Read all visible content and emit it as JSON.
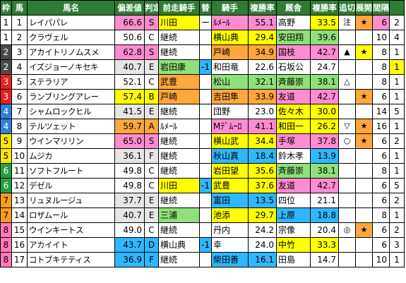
{
  "headers": [
    "枠",
    "馬",
    "馬名",
    "偏差値",
    "判定",
    "前走騎手",
    "替",
    "騎手",
    "複勝率",
    "厩舎",
    "複勝率",
    "追切",
    "展開",
    "間隔",
    ""
  ],
  "waku_colors": {
    "1": [
      "#ffffff",
      "#000000"
    ],
    "2": [
      "#4a4a4a",
      "#ffffff"
    ],
    "3": [
      "#e8211e",
      "#ffffff"
    ],
    "4": [
      "#2f80d7",
      "#ffffff"
    ],
    "5": [
      "#ffe600",
      "#000000"
    ],
    "6": [
      "#22a045",
      "#ffffff"
    ],
    "7": [
      "#ff9d1e",
      "#000000"
    ],
    "8": [
      "#ff79b6",
      "#000000"
    ]
  },
  "palette": {
    "pink": "#ff8cd1",
    "yellow": "#ffff00",
    "blue": "#2fb7ff",
    "green": "#8fe07a",
    "orange": "#ffa63d",
    "grey": "#e6e6e6",
    "white": "#ffffff"
  },
  "rows": [
    {
      "waku": "1",
      "num": "1",
      "name": "レイパパレ",
      "score": "66.6",
      "grade": "S",
      "prev": "川田",
      "chg": "ー",
      "jockey": "ﾙﾒｰﾙ",
      "jrate": "55.1",
      "stable": "高野",
      "srate": "33.5",
      "oikiri": "注",
      "tenkai": "★",
      "gap": "6",
      "x": "2",
      "bg": {
        "name": "white",
        "score": "pink",
        "prev": "yellow",
        "jockey": "pink",
        "jrate": "pink",
        "stable": "white",
        "srate": "yellow",
        "tenkai": "orange",
        "gap": "pink",
        "x": "white"
      }
    },
    {
      "waku": "1",
      "num": "2",
      "name": "クラヴェル",
      "score": "50.6",
      "grade": "C",
      "prev": "継続",
      "chg": "",
      "jockey": "横山典",
      "jrate": "29.4",
      "stable": "安田翔",
      "srate": "39.6",
      "oikiri": "",
      "tenkai": "",
      "gap": "10",
      "x": "4",
      "bg": {
        "name": "white",
        "score": "white",
        "prev": "white",
        "jockey": "yellow",
        "jrate": "yellow",
        "stable": "green",
        "srate": "green",
        "tenkai": "white",
        "gap": "white",
        "x": "white"
      }
    },
    {
      "waku": "2",
      "num": "3",
      "name": "アカイトリノムスメ",
      "score": "62.8",
      "grade": "S",
      "prev": "継続",
      "chg": "",
      "jockey": "戸崎",
      "jrate": "34.9",
      "stable": "国枝",
      "srate": "42.7",
      "oikiri": "▲",
      "tenkai": "★",
      "gap": "8",
      "x": "1",
      "bg": {
        "name": "white",
        "score": "pink",
        "prev": "white",
        "jockey": "orange",
        "jrate": "orange",
        "stable": "pink",
        "srate": "pink",
        "tenkai": "yellow",
        "gap": "white",
        "x": "white"
      }
    },
    {
      "waku": "2",
      "num": "4",
      "name": "イズジョーノキセキ",
      "score": "40.7",
      "grade": "E",
      "prev": "岩田康",
      "chg": "-1",
      "jockey": "和田竜",
      "jrate": "22.6",
      "stable": "石坂公",
      "srate": "24.7",
      "oikiri": "",
      "tenkai": "",
      "gap": "8",
      "x": "1",
      "bg": {
        "name": "white",
        "score": "grey",
        "prev": "green",
        "chg": "blue",
        "jockey": "white",
        "jrate": "white",
        "stable": "white",
        "srate": "white",
        "tenkai": "white",
        "gap": "white",
        "x": "yellow"
      }
    },
    {
      "waku": "3",
      "num": "5",
      "name": "ステラリア",
      "score": "52.1",
      "grade": "C",
      "prev": "武豊",
      "chg": "",
      "jockey": "松山",
      "jrate": "32.1",
      "stable": "斉藤崇",
      "srate": "38.1",
      "oikiri": "△",
      "tenkai": "",
      "gap": "8",
      "x": "1",
      "bg": {
        "name": "white",
        "score": "white",
        "prev": "orange",
        "jockey": "green",
        "jrate": "green",
        "stable": "green",
        "srate": "green",
        "tenkai": "white",
        "gap": "white",
        "x": "white"
      }
    },
    {
      "waku": "3",
      "num": "6",
      "name": "ランブリングアレー",
      "score": "57.4",
      "grade": "B",
      "prev": "戸崎",
      "chg": "",
      "jockey": "吉田隼",
      "jrate": "33.9",
      "stable": "友道",
      "srate": "42.7",
      "oikiri": "",
      "tenkai": "★",
      "gap": "6",
      "x": "1",
      "bg": {
        "name": "white",
        "score": "yellow",
        "prev": "orange",
        "jockey": "orange",
        "jrate": "orange",
        "stable": "pink",
        "srate": "pink",
        "tenkai": "orange",
        "gap": "white",
        "x": "white"
      }
    },
    {
      "waku": "4",
      "num": "7",
      "name": "シャムロックヒル",
      "score": "41.5",
      "grade": "E",
      "prev": "継続",
      "chg": "",
      "jockey": "団野",
      "jrate": "23.0",
      "stable": "佐々木",
      "srate": "30.0",
      "oikiri": "",
      "tenkai": "",
      "gap": "14",
      "x": "5",
      "bg": {
        "name": "white",
        "score": "grey",
        "prev": "white",
        "jockey": "white",
        "jrate": "white",
        "stable": "yellow",
        "srate": "yellow",
        "tenkai": "white",
        "gap": "white",
        "x": "white"
      }
    },
    {
      "waku": "4",
      "num": "8",
      "name": "テルツェット",
      "score": "59.7",
      "grade": "A",
      "prev": "ﾙﾒｰﾙ",
      "chg": "",
      "jockey": "Mﾃﾞﾑｰﾛ",
      "jrate": "41.1",
      "stable": "和田一",
      "srate": "26.2",
      "oikiri": "▽",
      "tenkai": "★",
      "gap": "16",
      "x": "1",
      "bg": {
        "name": "white",
        "score": "orange",
        "prev": "white",
        "jockey": "pink",
        "jrate": "pink",
        "stable": "yellow",
        "srate": "yellow",
        "tenkai": "orange",
        "gap": "white",
        "x": "white"
      }
    },
    {
      "waku": "5",
      "num": "9",
      "name": "ウインマリリン",
      "score": "65.0",
      "grade": "S",
      "prev": "継続",
      "chg": "",
      "jockey": "横山武",
      "jrate": "34.4",
      "stable": "手塚",
      "srate": "37.8",
      "oikiri": "○",
      "tenkai": "★",
      "gap": "6",
      "x": "2",
      "bg": {
        "name": "white",
        "score": "pink",
        "prev": "white",
        "jockey": "yellow",
        "jrate": "yellow",
        "stable": "pink",
        "srate": "pink",
        "tenkai": "orange",
        "gap": "white",
        "x": "white"
      }
    },
    {
      "waku": "5",
      "num": "10",
      "name": "ムジカ",
      "score": "36.1",
      "grade": "F",
      "prev": "継続",
      "chg": "",
      "jockey": "秋山真",
      "jrate": "18.4",
      "stable": "鈴木孝",
      "srate": "13.9",
      "oikiri": "",
      "tenkai": "",
      "gap": "6",
      "x": "1",
      "bg": {
        "name": "white",
        "score": "grey",
        "prev": "white",
        "jockey": "blue",
        "jrate": "blue",
        "stable": "white",
        "srate": "blue",
        "tenkai": "white",
        "gap": "white",
        "x": "white"
      }
    },
    {
      "waku": "6",
      "num": "11",
      "name": "ソフトフルート",
      "score": "49.8",
      "grade": "C",
      "prev": "継続",
      "chg": "",
      "jockey": "岩田望",
      "jrate": "35.6",
      "stable": "斉藤崇",
      "srate": "38.1",
      "oikiri": "",
      "tenkai": "",
      "gap": "8",
      "x": "1",
      "bg": {
        "name": "white",
        "score": "white",
        "prev": "white",
        "jockey": "yellow",
        "jrate": "yellow",
        "stable": "green",
        "srate": "green",
        "tenkai": "white",
        "gap": "white",
        "x": "white"
      }
    },
    {
      "waku": "6",
      "num": "12",
      "name": "デゼル",
      "score": "49.8",
      "grade": "C",
      "prev": "川田",
      "chg": "-1",
      "jockey": "武豊",
      "jrate": "37.6",
      "stable": "友道",
      "srate": "42.7",
      "oikiri": "",
      "tenkai": "",
      "gap": "6",
      "x": "5",
      "bg": {
        "name": "white",
        "score": "white",
        "prev": "yellow",
        "chg": "blue",
        "jockey": "yellow",
        "jrate": "yellow",
        "stable": "pink",
        "srate": "pink",
        "tenkai": "white",
        "gap": "white",
        "x": "white"
      }
    },
    {
      "waku": "7",
      "num": "13",
      "name": "リュヌルージュ",
      "score": "37.7",
      "grade": "E",
      "prev": "継続",
      "chg": "",
      "jockey": "富田",
      "jrate": "13.5",
      "stable": "四位",
      "srate": "21.1",
      "oikiri": "",
      "tenkai": "",
      "gap": "6",
      "x": "2",
      "bg": {
        "name": "white",
        "score": "grey",
        "prev": "white",
        "jockey": "blue",
        "jrate": "blue",
        "stable": "white",
        "srate": "white",
        "tenkai": "white",
        "gap": "white",
        "x": "white"
      }
    },
    {
      "waku": "7",
      "num": "14",
      "name": "ロザムール",
      "score": "40.7",
      "grade": "E",
      "prev": "三浦",
      "chg": "",
      "jockey": "池添",
      "jrate": "29.7",
      "stable": "上原",
      "srate": "18.8",
      "oikiri": "",
      "tenkai": "",
      "gap": "8",
      "x": "1",
      "bg": {
        "name": "white",
        "score": "grey",
        "prev": "green",
        "jockey": "yellow",
        "jrate": "yellow",
        "stable": "blue",
        "srate": "blue",
        "tenkai": "white",
        "gap": "white",
        "x": "white"
      }
    },
    {
      "waku": "8",
      "num": "15",
      "name": "ウインキートス",
      "score": "49.0",
      "grade": "C",
      "prev": "継続",
      "chg": "",
      "jockey": "丹内",
      "jrate": "24.2",
      "stable": "宗像",
      "srate": "20.4",
      "oikiri": "◎",
      "tenkai": "★",
      "gap": "6",
      "x": "2",
      "bg": {
        "name": "white",
        "score": "white",
        "prev": "white",
        "jockey": "white",
        "jrate": "white",
        "stable": "white",
        "srate": "white",
        "tenkai": "orange",
        "gap": "white",
        "x": "white"
      }
    },
    {
      "waku": "8",
      "num": "16",
      "name": "アカイイト",
      "score": "43.7",
      "grade": "D",
      "prev": "横山典",
      "chg": "-1",
      "jockey": "幸",
      "jrate": "24.0",
      "stable": "中竹",
      "srate": "33.3",
      "oikiri": "",
      "tenkai": "",
      "gap": "6",
      "x": "3",
      "bg": {
        "name": "white",
        "score": "blue",
        "prev": "white",
        "chg": "blue",
        "jockey": "white",
        "jrate": "white",
        "stable": "yellow",
        "srate": "yellow",
        "tenkai": "white",
        "gap": "white",
        "x": "white"
      }
    },
    {
      "waku": "8",
      "num": "17",
      "name": "コトブキテティス",
      "score": "36.9",
      "grade": "F",
      "prev": "継続",
      "chg": "",
      "jockey": "柴田善",
      "jrate": "16.1",
      "stable": "田島",
      "srate": "14.7",
      "oikiri": "",
      "tenkai": "",
      "gap": "10",
      "x": "1",
      "bg": {
        "name": "white",
        "score": "blue",
        "prev": "white",
        "jockey": "blue",
        "jrate": "blue",
        "stable": "white",
        "srate": "white",
        "tenkai": "white",
        "gap": "white",
        "x": "white"
      }
    }
  ]
}
